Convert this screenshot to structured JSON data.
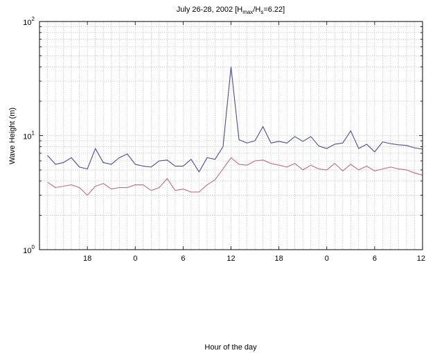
{
  "chart_data": {
    "type": "line",
    "title": {
      "main": "July 26-28, 2002   [H",
      "sub1": "max",
      "mid": "/H",
      "sub2": "s",
      "end": "=6.22]"
    },
    "xlabel": "Hour of the day",
    "ylabel": "Wave Height    (m)",
    "yscale": "log",
    "ylim": [
      1,
      100
    ],
    "y_ticks": [
      {
        "base": "10",
        "exp": "0",
        "value": 1
      },
      {
        "base": "10",
        "exp": "1",
        "value": 10
      },
      {
        "base": "10",
        "exp": "2",
        "value": 100
      }
    ],
    "xlim": [
      12,
      60
    ],
    "x_ticks": [
      {
        "label": "18",
        "value": 18
      },
      {
        "label": "0",
        "value": 24
      },
      {
        "label": "6",
        "value": 30
      },
      {
        "label": "12",
        "value": 36
      },
      {
        "label": "18",
        "value": 42
      },
      {
        "label": "0",
        "value": 48
      },
      {
        "label": "6",
        "value": 54
      },
      {
        "label": "12",
        "value": 60
      }
    ],
    "grid": true,
    "x": [
      13,
      14,
      15,
      16,
      17,
      18,
      19,
      20,
      21,
      22,
      23,
      24,
      25,
      26,
      27,
      28,
      29,
      30,
      31,
      32,
      33,
      34,
      35,
      36,
      37,
      38,
      39,
      40,
      41,
      42,
      43,
      44,
      45,
      46,
      47,
      48,
      49,
      50,
      51,
      52,
      53,
      54,
      55,
      56,
      57,
      58,
      59,
      60
    ],
    "series": [
      {
        "color": "#4a4a9c",
        "values": [
          6.7,
          5.6,
          5.8,
          6.4,
          5.3,
          5.1,
          7.7,
          5.8,
          5.6,
          6.4,
          6.9,
          5.6,
          5.4,
          5.3,
          6.0,
          6.1,
          5.4,
          5.4,
          6.2,
          4.8,
          6.4,
          6.2,
          8.0,
          40.0,
          9.2,
          8.6,
          9.0,
          12.0,
          8.6,
          8.9,
          8.6,
          9.8,
          8.9,
          9.8,
          8.1,
          7.7,
          8.4,
          8.6,
          11.0,
          7.7,
          8.4,
          7.2,
          8.8,
          8.5,
          8.3,
          8.2,
          7.8,
          7.6
        ]
      },
      {
        "color": "#c46a7a",
        "values": [
          3.9,
          3.5,
          3.6,
          3.7,
          3.5,
          3.0,
          3.6,
          3.8,
          3.4,
          3.5,
          3.5,
          3.7,
          3.7,
          3.3,
          3.5,
          4.2,
          3.3,
          3.4,
          3.2,
          3.2,
          3.7,
          4.1,
          5.1,
          6.4,
          5.6,
          5.5,
          6.0,
          6.1,
          5.7,
          5.5,
          5.3,
          5.7,
          5.0,
          5.5,
          5.1,
          5.0,
          5.7,
          4.9,
          5.6,
          5.0,
          5.4,
          4.9,
          5.1,
          5.3,
          5.1,
          5.0,
          4.7,
          4.5
        ]
      }
    ]
  }
}
